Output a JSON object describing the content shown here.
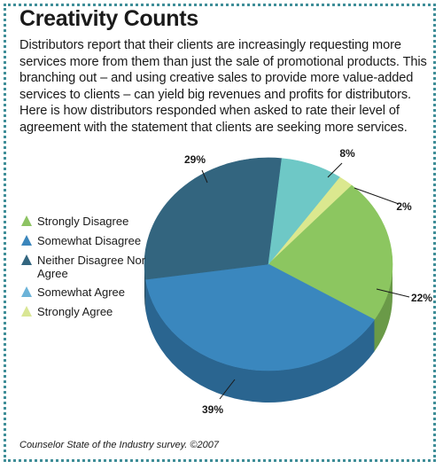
{
  "header": {
    "title": "Creativity Counts",
    "body": "Distributors report that their clients are increasingly requesting more services more from them than just the sale of promotional products. This branching out – and using creative sales to provide more value-added services to clients – can yield big revenues and profits for distributors. Here is how distributors responded when asked to rate their level of agreement with the statement that clients are seeking more services."
  },
  "legend": {
    "items": [
      {
        "label": "Strongly Disagree",
        "color": "#8dc363"
      },
      {
        "label": "Somewhat Disagree",
        "color": "#3b86bc"
      },
      {
        "label": "Neither Disagree Nor Agree",
        "color": "#33667f"
      },
      {
        "label": "Somewhat Agree",
        "color": "#6cb3d8"
      },
      {
        "label": "Strongly Agree",
        "color": "#d9e694"
      }
    ]
  },
  "chart_data": {
    "type": "pie",
    "title": "Creativity Counts",
    "slices": [
      {
        "label": "Strongly Agree",
        "value": 2,
        "value_label": "2%",
        "top": "#dbe88f",
        "side": "#b5c46b"
      },
      {
        "label": "Strongly Disagree",
        "value": 22,
        "value_label": "22%",
        "top": "#8cc660",
        "side": "#6a9a48"
      },
      {
        "label": "Somewhat Disagree",
        "value": 39,
        "value_label": "39%",
        "top": "#3a87be",
        "side": "#2a6590"
      },
      {
        "label": "Neither Disagree Nor Agree",
        "value": 29,
        "value_label": "29%",
        "top": "#33657f",
        "side": "#264c60"
      },
      {
        "label": "Somewhat Agree",
        "value": 8,
        "value_label": "8%",
        "top": "#6ec8c6",
        "side": "#4e9a98"
      }
    ]
  },
  "footer": {
    "source": "Counselor State of the Industry survey. ©2007"
  }
}
